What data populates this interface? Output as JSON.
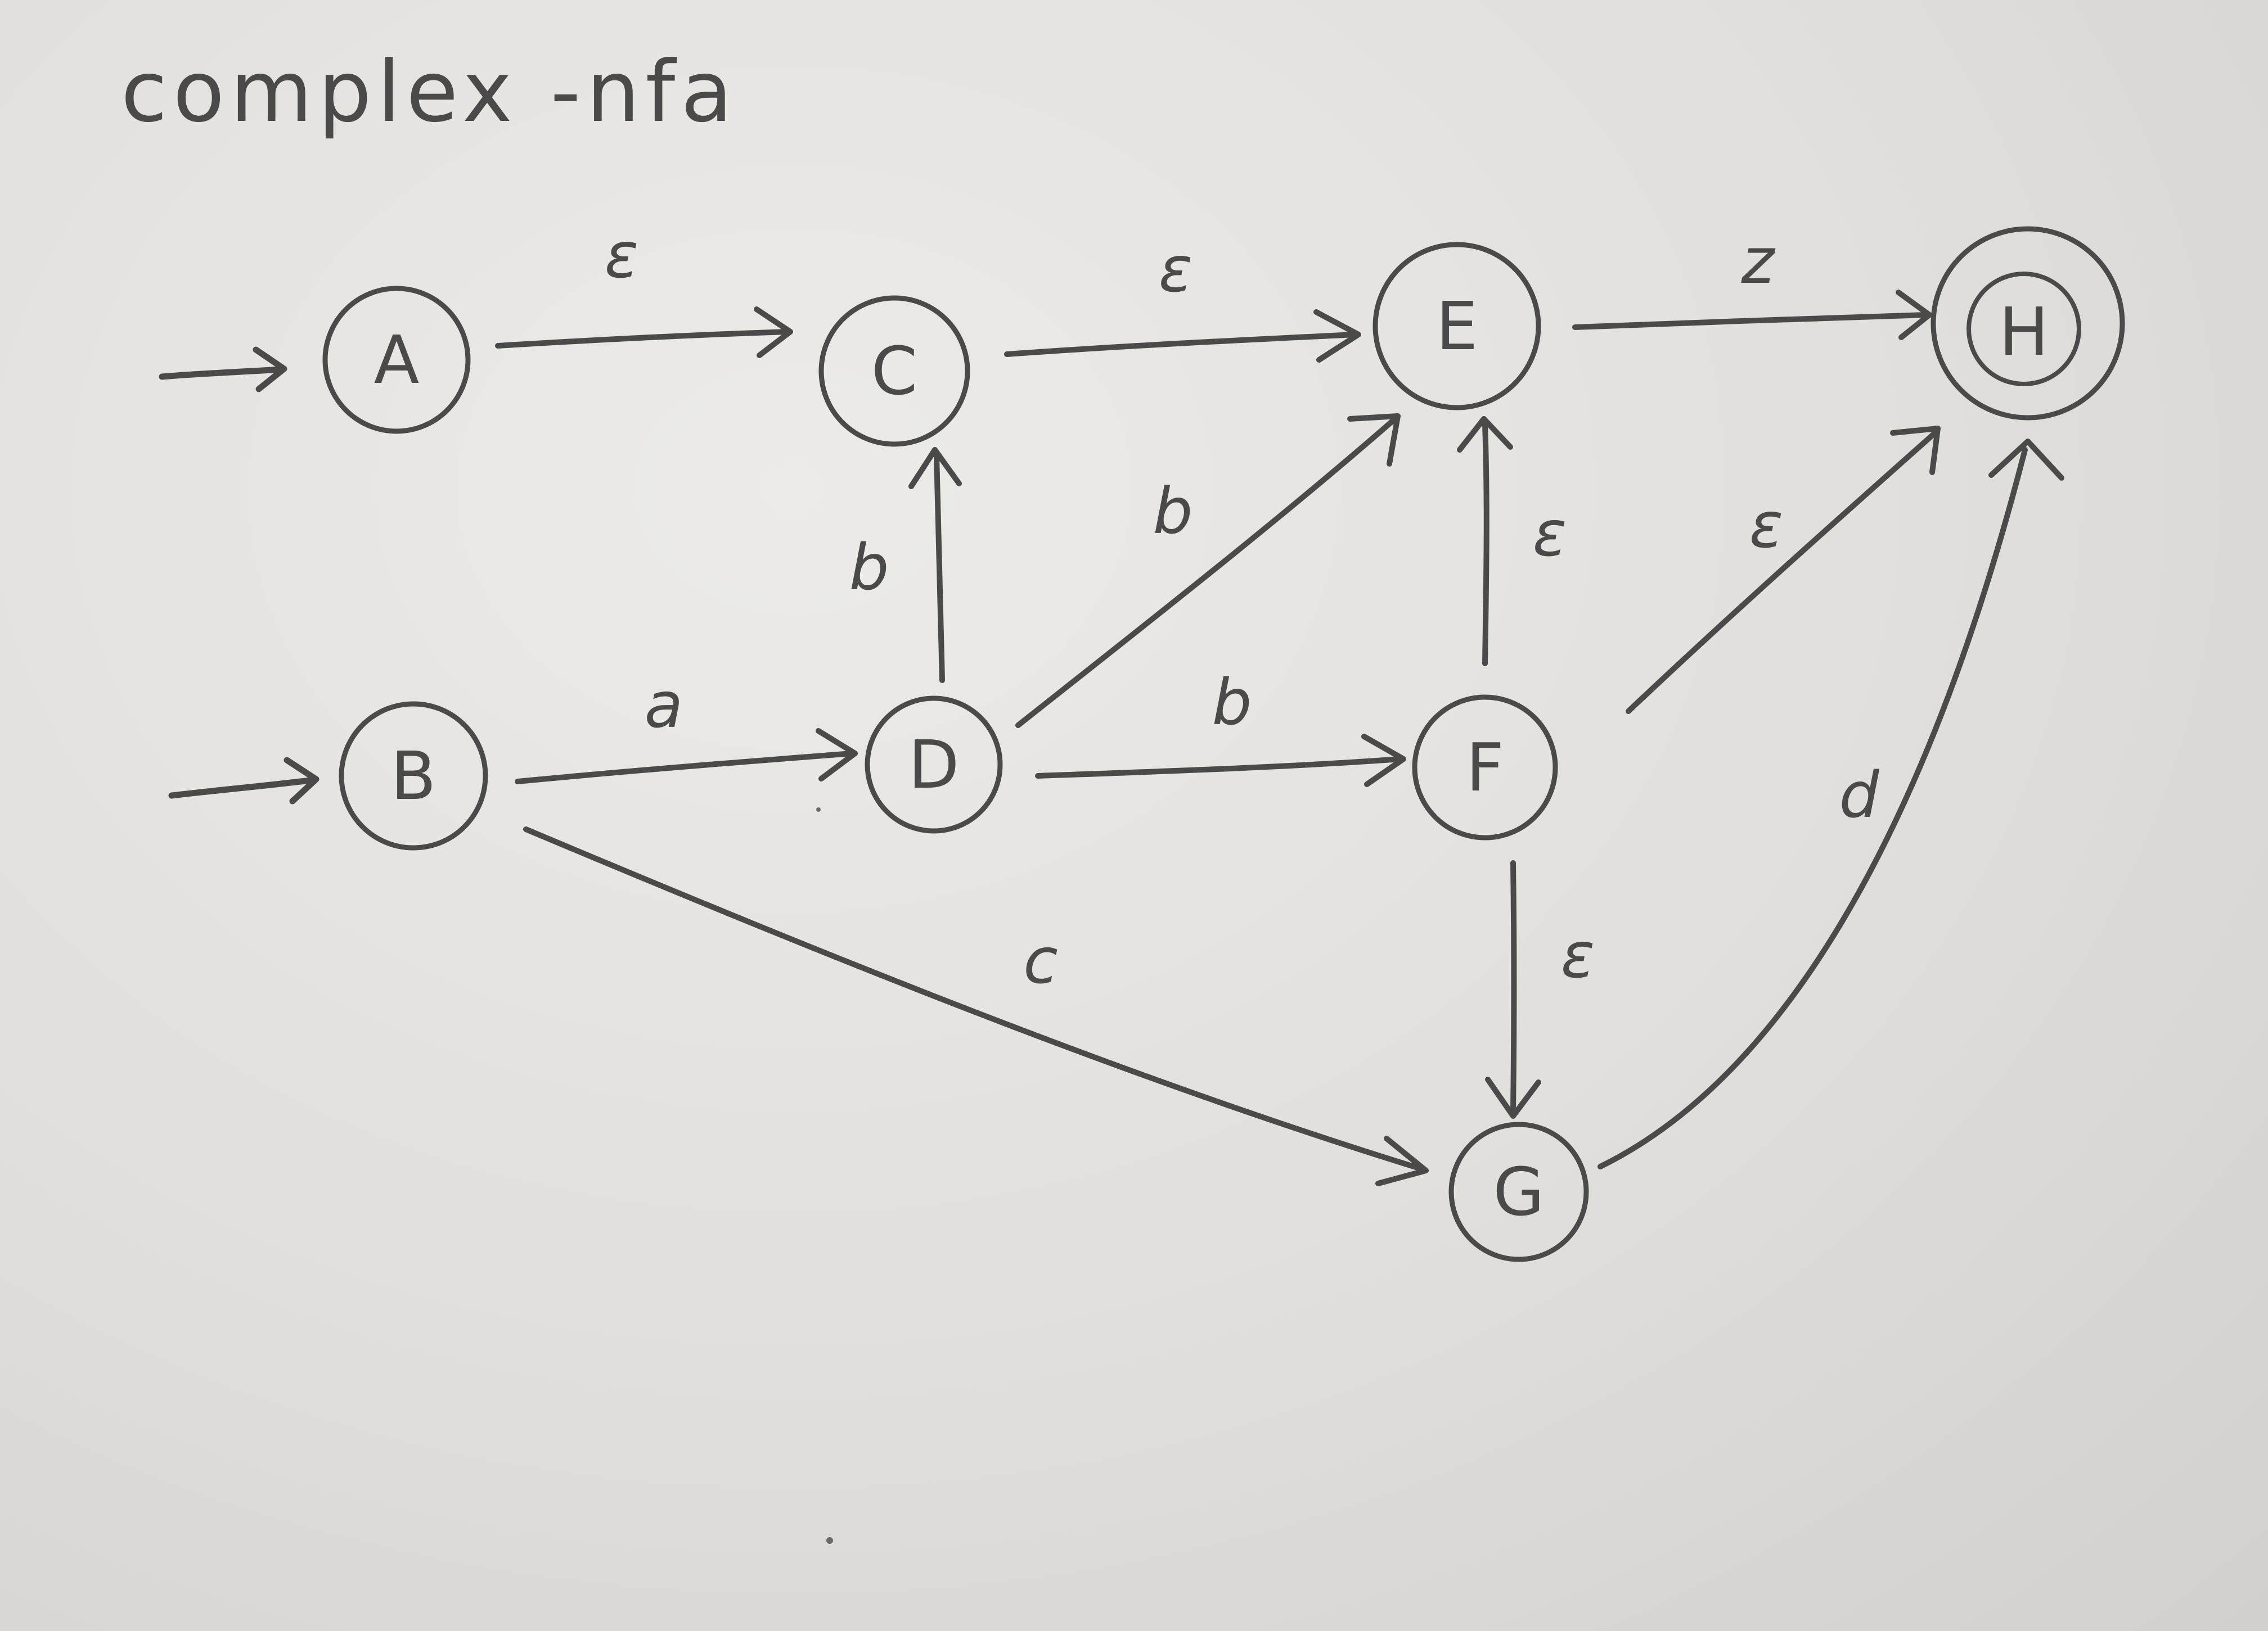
{
  "diagram": {
    "title": "complex -nfa",
    "states": [
      {
        "id": "A",
        "label": "A",
        "start": true,
        "accept": false
      },
      {
        "id": "B",
        "label": "B",
        "start": true,
        "accept": false
      },
      {
        "id": "C",
        "label": "C",
        "start": false,
        "accept": false
      },
      {
        "id": "D",
        "label": "D",
        "start": false,
        "accept": false
      },
      {
        "id": "E",
        "label": "E",
        "start": false,
        "accept": false
      },
      {
        "id": "F",
        "label": "F",
        "start": false,
        "accept": false
      },
      {
        "id": "G",
        "label": "G",
        "start": false,
        "accept": false
      },
      {
        "id": "H",
        "label": "H",
        "start": false,
        "accept": true
      }
    ],
    "transitions": [
      {
        "from": "A",
        "to": "C",
        "label": "ε"
      },
      {
        "from": "C",
        "to": "E",
        "label": "ε"
      },
      {
        "from": "E",
        "to": "H",
        "label": "z"
      },
      {
        "from": "D",
        "to": "C",
        "label": "b"
      },
      {
        "from": "D",
        "to": "E",
        "label": "b"
      },
      {
        "from": "B",
        "to": "D",
        "label": "a"
      },
      {
        "from": "D",
        "to": "F",
        "label": "b"
      },
      {
        "from": "F",
        "to": "E",
        "label": "ε"
      },
      {
        "from": "F",
        "to": "H",
        "label": "ε"
      },
      {
        "from": "F",
        "to": "G",
        "label": "ε"
      },
      {
        "from": "B",
        "to": "G",
        "label": "c"
      },
      {
        "from": "G",
        "to": "H",
        "label": "d"
      }
    ]
  }
}
